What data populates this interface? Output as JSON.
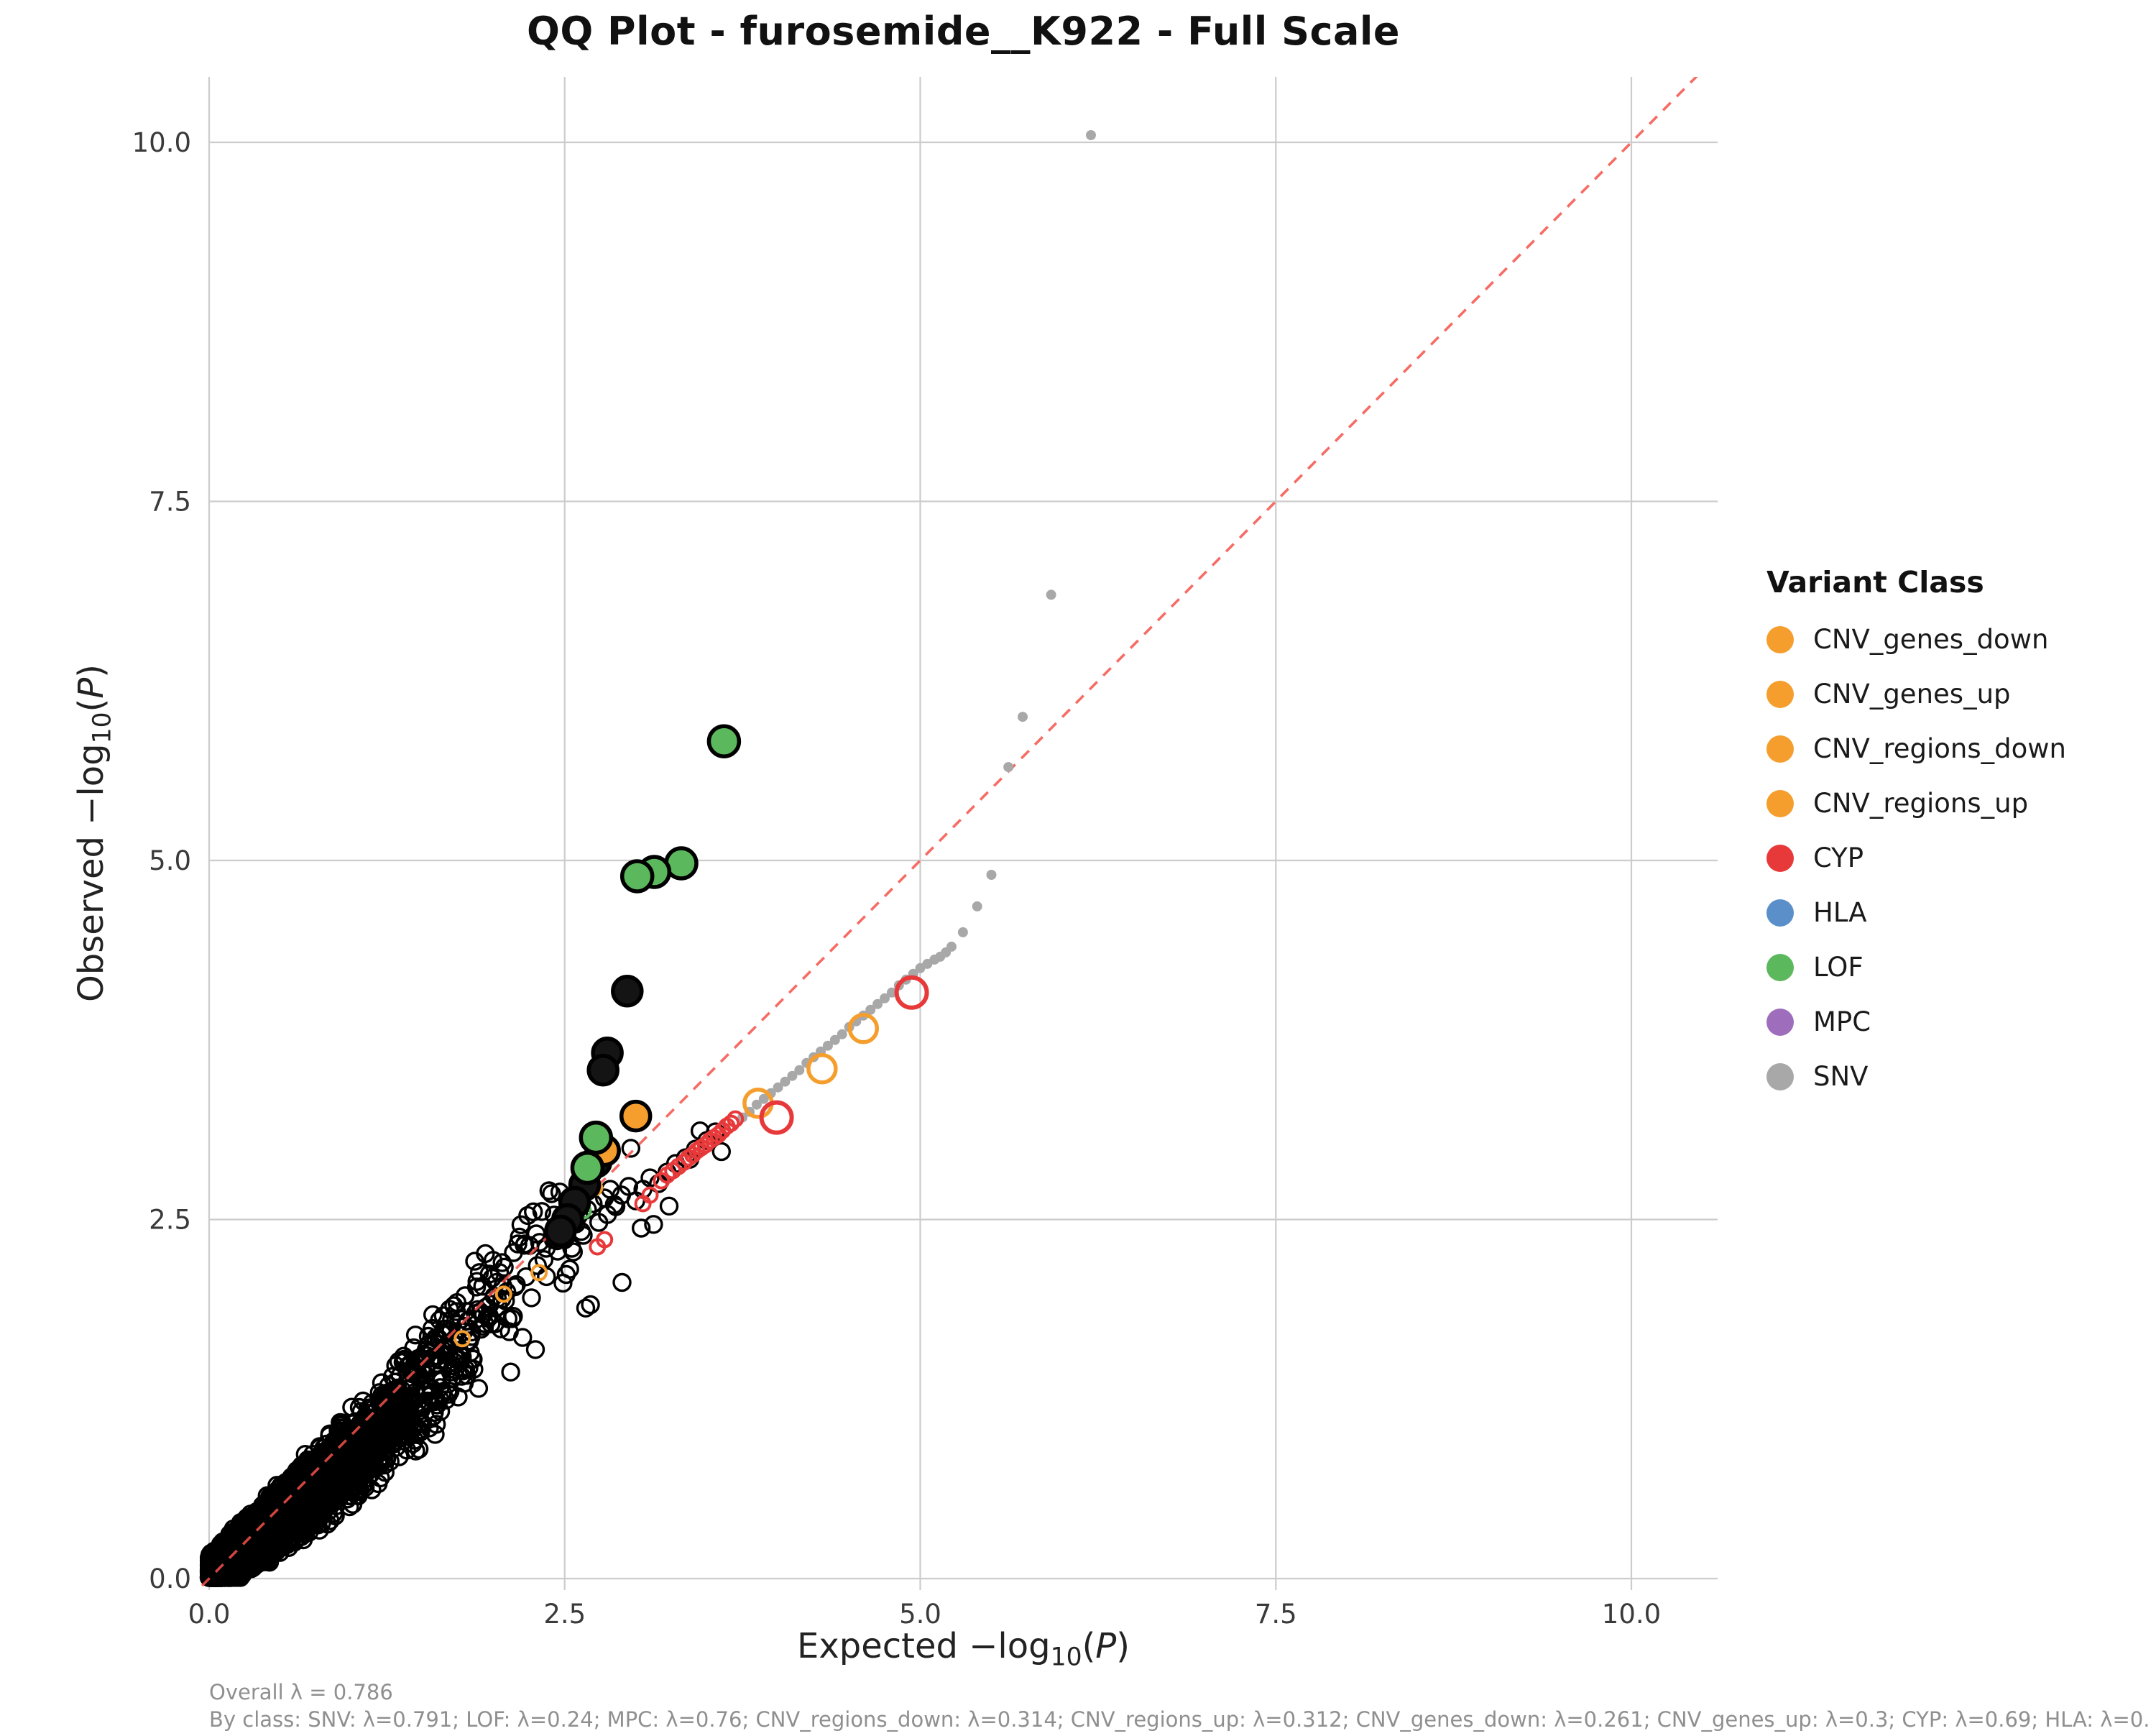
{
  "chart_data": {
    "type": "scatter",
    "title": "QQ Plot - furosemide__K922 - Full Scale",
    "xlabel": "Expected −log10(P)",
    "ylabel": "Observed −log10(P)",
    "xlim": [
      0,
      10.61
    ],
    "ylim": [
      -0.08,
      10.46
    ],
    "xticks": [
      "0.0",
      "2.5",
      "5.0",
      "7.5",
      "10.0"
    ],
    "yticks": [
      "0.0",
      "2.5",
      "5.0",
      "7.5",
      "10.0"
    ],
    "grid": true,
    "identity_line": {
      "type": "identity",
      "style": "dashed",
      "color": "#f4524a"
    },
    "series": [
      {
        "name": "bulk_black",
        "class": "all_variants",
        "type": "cloud",
        "under": true,
        "color": "#000000",
        "marker": "ring",
        "size": 11.5,
        "stroke": 3.4,
        "n": 6000,
        "seed": 7,
        "trend": [
          [
            0,
            0.02
          ],
          [
            0.5,
            0.42
          ],
          [
            1.0,
            0.85
          ],
          [
            1.5,
            1.32
          ],
          [
            2.0,
            1.85
          ],
          [
            2.5,
            2.3
          ],
          [
            3.0,
            2.65
          ],
          [
            3.6,
            3.05
          ]
        ],
        "spread_base": 0.055,
        "spread_slope": 0.085
      },
      {
        "name": "black_sparse",
        "class": "all_variants",
        "type": "points",
        "under": true,
        "color": "#000000",
        "marker": "ring",
        "size": 11.5,
        "stroke": 3.4,
        "points": [
          [
            1.62,
            1.8
          ],
          [
            1.72,
            1.9
          ],
          [
            1.8,
            1.97
          ],
          [
            1.88,
            2.03
          ],
          [
            1.97,
            2.12
          ],
          [
            2.06,
            2.2
          ],
          [
            2.14,
            2.27
          ],
          [
            2.22,
            2.33
          ],
          [
            2.3,
            2.4
          ],
          [
            2.37,
            2.3
          ],
          [
            2.42,
            2.36
          ],
          [
            2.45,
            2.28
          ],
          [
            2.5,
            2.36
          ],
          [
            2.52,
            2.43
          ],
          [
            2.55,
            2.3
          ],
          [
            2.58,
            2.47
          ],
          [
            2.6,
            2.53
          ],
          [
            2.63,
            2.39
          ],
          [
            2.66,
            2.57
          ],
          [
            2.7,
            2.61
          ],
          [
            2.74,
            2.48
          ],
          [
            2.78,
            2.65
          ],
          [
            2.82,
            2.71
          ],
          [
            2.86,
            2.59
          ],
          [
            2.9,
            2.67
          ],
          [
            2.95,
            2.73
          ],
          [
            3.0,
            2.63
          ],
          [
            3.05,
            2.71
          ],
          [
            3.1,
            2.79
          ],
          [
            3.16,
            2.75
          ],
          [
            3.22,
            2.83
          ],
          [
            3.28,
            2.89
          ],
          [
            3.35,
            2.93
          ],
          [
            3.42,
            2.99
          ],
          [
            3.5,
            3.05
          ],
          [
            3.56,
            3.11
          ]
        ]
      },
      {
        "name": "SNV_trail",
        "class": "SNV",
        "type": "points",
        "color": "#a8a8a8",
        "marker": "dot",
        "size": 7,
        "points": [
          [
            3.75,
            3.21
          ],
          [
            3.8,
            3.25
          ],
          [
            3.85,
            3.3
          ],
          [
            3.9,
            3.34
          ],
          [
            3.95,
            3.38
          ],
          [
            4.0,
            3.42
          ],
          [
            4.05,
            3.46
          ],
          [
            4.1,
            3.5
          ],
          [
            4.15,
            3.54
          ],
          [
            4.2,
            3.59
          ],
          [
            4.25,
            3.63
          ],
          [
            4.3,
            3.67
          ],
          [
            4.35,
            3.71
          ],
          [
            4.4,
            3.75
          ],
          [
            4.45,
            3.79
          ],
          [
            4.5,
            3.84
          ],
          [
            4.55,
            3.88
          ],
          [
            4.6,
            3.92
          ],
          [
            4.65,
            3.96
          ],
          [
            4.7,
            4.0
          ],
          [
            4.75,
            4.04
          ],
          [
            4.8,
            4.08
          ],
          [
            4.85,
            4.13
          ],
          [
            4.9,
            4.17
          ],
          [
            4.95,
            4.21
          ],
          [
            5.0,
            4.25
          ],
          [
            5.05,
            4.28
          ],
          [
            5.1,
            4.31
          ],
          [
            5.14,
            4.33
          ],
          [
            5.18,
            4.36
          ],
          [
            5.22,
            4.4
          ],
          [
            5.3,
            4.5
          ],
          [
            5.4,
            4.68
          ],
          [
            5.5,
            4.9
          ],
          [
            5.62,
            5.65
          ],
          [
            5.72,
            6.0
          ],
          [
            5.92,
            6.85
          ],
          [
            6.2,
            10.05
          ]
        ]
      },
      {
        "name": "CNV_in_cloud",
        "class": "CNV",
        "type": "points",
        "color": "#f59e2d",
        "marker": "ring",
        "size": 10,
        "stroke": 4,
        "points": [
          [
            1.78,
            1.67
          ],
          [
            2.07,
            1.98
          ],
          [
            2.32,
            2.13
          ],
          [
            2.6,
            2.62
          ],
          [
            2.66,
            2.75
          ],
          [
            2.71,
            2.72
          ]
        ]
      },
      {
        "name": "LOF_in_cloud",
        "class": "LOF",
        "type": "points",
        "color": "#5cb85c",
        "marker": "ring",
        "size": 10,
        "stroke": 4,
        "points": [
          [
            2.63,
            2.56
          ],
          [
            2.68,
            2.87
          ]
        ]
      },
      {
        "name": "CYP_streak",
        "class": "CYP",
        "type": "points",
        "color": "#e8393a",
        "marker": "ring",
        "size": 10,
        "stroke": 4,
        "points": [
          [
            2.73,
            2.31
          ],
          [
            2.78,
            2.36
          ],
          [
            3.05,
            2.61
          ],
          [
            3.1,
            2.67
          ],
          [
            3.18,
            2.77
          ],
          [
            3.22,
            2.81
          ],
          [
            3.26,
            2.84
          ],
          [
            3.3,
            2.87
          ],
          [
            3.34,
            2.9
          ],
          [
            3.37,
            2.93
          ],
          [
            3.4,
            2.95
          ],
          [
            3.43,
            2.98
          ],
          [
            3.46,
            3.0
          ],
          [
            3.49,
            3.02
          ],
          [
            3.52,
            3.05
          ],
          [
            3.55,
            3.07
          ],
          [
            3.58,
            3.09
          ],
          [
            3.61,
            3.12
          ],
          [
            3.64,
            3.15
          ],
          [
            3.67,
            3.17
          ],
          [
            3.7,
            3.2
          ]
        ]
      },
      {
        "name": "CNV_outlier_rings",
        "class": "CNV",
        "type": "points",
        "color": "#f59e2d",
        "marker": "ring",
        "size": 19,
        "stroke": 5.5,
        "points": [
          [
            4.6,
            3.83
          ],
          [
            4.31,
            3.55
          ],
          [
            3.86,
            3.31
          ]
        ]
      },
      {
        "name": "CYP_outlier_rings",
        "class": "CYP",
        "type": "points",
        "color": "#e8393a",
        "marker": "ring",
        "size": 21,
        "stroke": 6,
        "points": [
          [
            4.94,
            4.08
          ],
          [
            3.99,
            3.21
          ]
        ]
      },
      {
        "name": "highlight_black",
        "class": "highlighted",
        "type": "points",
        "marker": "target",
        "ring_color": "#000000",
        "fill": "#141414",
        "size": 20,
        "stroke": 5.5,
        "points": [
          [
            2.94,
            4.09
          ],
          [
            2.8,
            3.66
          ],
          [
            2.77,
            3.54
          ],
          [
            2.72,
            2.9
          ],
          [
            2.64,
            2.74
          ],
          [
            2.57,
            2.62
          ],
          [
            2.52,
            2.5
          ],
          [
            2.47,
            2.42
          ]
        ]
      },
      {
        "name": "highlight_CNV",
        "class": "CNV_highlighted",
        "type": "points",
        "marker": "target",
        "ring_color": "#000000",
        "fill": "#f59e2d",
        "size": 20,
        "stroke": 5.5,
        "points": [
          [
            3.0,
            3.22
          ],
          [
            2.78,
            2.98
          ]
        ]
      },
      {
        "name": "highlight_LOF",
        "class": "LOF_highlighted",
        "type": "points",
        "marker": "target",
        "ring_color": "#000000",
        "fill": "#5cb85c",
        "size": 21,
        "stroke": 5.5,
        "points": [
          [
            3.62,
            5.83
          ],
          [
            3.32,
            4.98
          ],
          [
            3.13,
            4.92
          ],
          [
            3.01,
            4.89
          ],
          [
            2.72,
            3.07
          ],
          [
            2.66,
            2.86
          ]
        ]
      }
    ]
  },
  "axes": {
    "x": {
      "main": "Expected −log",
      "sub": "10",
      "open": "(",
      "var": "P",
      "close": ")"
    },
    "y": {
      "main": "Observed −log",
      "sub": "10",
      "open": "(",
      "var": "P",
      "close": ")"
    }
  },
  "legend": {
    "title": "Variant Class",
    "items": [
      {
        "label": "CNV_genes_down",
        "color": "#f59e2d"
      },
      {
        "label": "CNV_genes_up",
        "color": "#f59e2d"
      },
      {
        "label": "CNV_regions_down",
        "color": "#f59e2d"
      },
      {
        "label": "CNV_regions_up",
        "color": "#f59e2d"
      },
      {
        "label": "CYP",
        "color": "#e8393a"
      },
      {
        "label": "HLA",
        "color": "#5b8fc9"
      },
      {
        "label": "LOF",
        "color": "#5cb85c"
      },
      {
        "label": "MPC",
        "color": "#9e6ebd"
      },
      {
        "label": "SNV",
        "color": "#a8a8a8"
      }
    ]
  },
  "footer": {
    "line1": "Overall λ = 0.786",
    "line2": "By class: SNV: λ=0.791; LOF: λ=0.24; MPC: λ=0.76; CNV_regions_down: λ=0.314; CNV_regions_up: λ=0.312; CNV_genes_down: λ=0.261; CNV_genes_up: λ=0.3; CYP: λ=0.69; HLA: λ=0."
  },
  "colors": {
    "grid": "#cccccc",
    "tick_text": "#3a3a3a",
    "identity_line": "#f4524a"
  }
}
